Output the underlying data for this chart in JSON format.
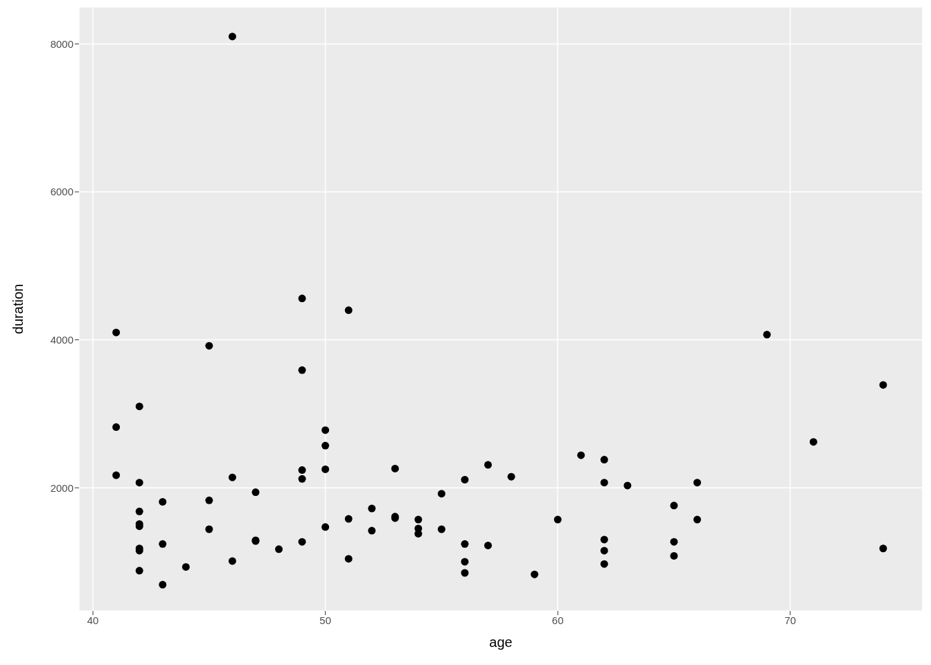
{
  "chart_data": {
    "type": "scatter",
    "xlabel": "age",
    "ylabel": "duration",
    "x": [
      41,
      41,
      41,
      42,
      42,
      42,
      42,
      42,
      42,
      42,
      42,
      43,
      43,
      43,
      44,
      45,
      45,
      45,
      46,
      46,
      46,
      47,
      47,
      47,
      48,
      49,
      49,
      49,
      49,
      49,
      50,
      50,
      50,
      50,
      51,
      51,
      51,
      52,
      52,
      53,
      53,
      53,
      54,
      54,
      54,
      55,
      55,
      56,
      56,
      56,
      56,
      57,
      57,
      58,
      59,
      60,
      61,
      62,
      62,
      62,
      62,
      62,
      63,
      65,
      65,
      65,
      66,
      66,
      69,
      71,
      74,
      74
    ],
    "series": [
      {
        "color": "#000000",
        "values": [
          4100,
          2820,
          2170,
          3100,
          2070,
          1680,
          1510,
          1480,
          1180,
          1150,
          880,
          1810,
          1240,
          690,
          930,
          3920,
          1830,
          1440,
          8100,
          2140,
          1010,
          1940,
          1290,
          1280,
          1170,
          4560,
          3590,
          2240,
          2120,
          1270,
          2780,
          2570,
          2250,
          1470,
          4400,
          1580,
          1040,
          1720,
          1420,
          2260,
          1610,
          1590,
          1570,
          1450,
          1380,
          1920,
          1440,
          2110,
          1240,
          1000,
          850,
          2310,
          1220,
          2150,
          830,
          1570,
          2440,
          2380,
          2070,
          1300,
          1150,
          970,
          2030,
          1760,
          1270,
          1080,
          2070,
          1570,
          4070,
          2620,
          3390,
          1180
        ]
      }
    ],
    "xlim": [
      39.4,
      75.7
    ],
    "ylim": [
      335,
      8500
    ],
    "xticks": [
      40,
      50,
      60,
      70
    ],
    "yticks": [
      2000,
      4000,
      6000,
      8000
    ],
    "grid": true,
    "marker": "circle"
  }
}
